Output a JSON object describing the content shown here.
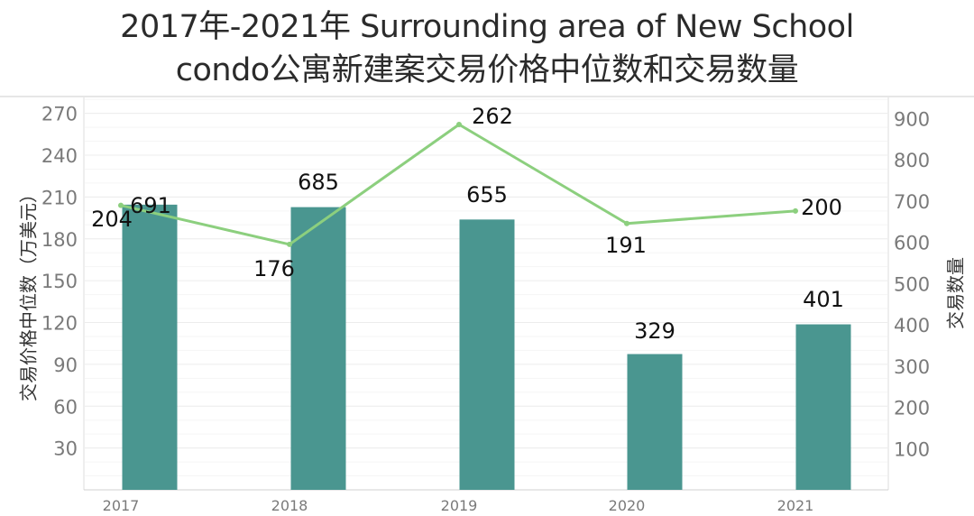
{
  "title": {
    "line1": "2017年-2021年 Surrounding area of New School",
    "line2": "condo公寓新建案交易价格中位数和交易数量"
  },
  "axes": {
    "left_title": "交易价格中位数（万美元）",
    "right_title": "交易数量",
    "left_ticks": [
      "270",
      "240",
      "210",
      "180",
      "150",
      "120",
      "90",
      "60",
      "30"
    ],
    "right_ticks": [
      "900",
      "800",
      "700",
      "600",
      "500",
      "400",
      "300",
      "200",
      "100"
    ]
  },
  "colors": {
    "bar": "#4a9690",
    "line": "#8ccf7e",
    "grid": "#efefef",
    "tick_text": "#7a7a7a",
    "label_text": "#111111"
  },
  "chart_data": {
    "type": "bar+line",
    "title": "2017年-2021年 Surrounding area of New School condo公寓新建案交易价格中位数和交易数量",
    "categories": [
      "2017",
      "2018",
      "2019",
      "2020",
      "2021"
    ],
    "series": [
      {
        "name": "交易数量",
        "type": "bar",
        "axis": "right",
        "values": [
          691,
          685,
          655,
          329,
          401
        ]
      },
      {
        "name": "交易价格中位数（万美元）",
        "type": "line",
        "axis": "left",
        "values": [
          204,
          176,
          262,
          191,
          200
        ]
      }
    ],
    "xlabel": "",
    "ylabel_left": "交易价格中位数（万美元）",
    "ylabel_right": "交易数量",
    "ylim_left": [
      0,
      280
    ],
    "ylim_right": [
      0,
      950
    ],
    "grid": true,
    "legend": "none"
  }
}
